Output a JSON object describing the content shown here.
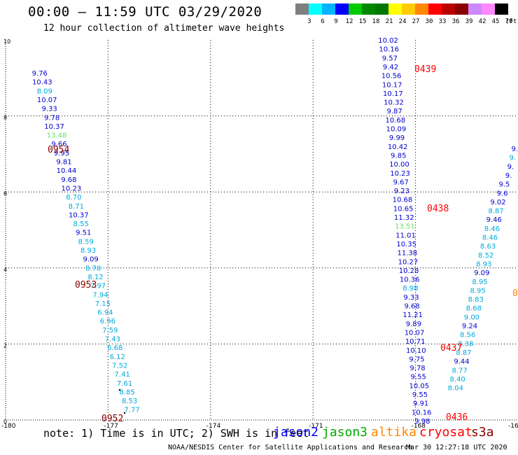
{
  "header": {
    "title": "00:00 — 11:59 UTC 03/29/2020",
    "subtitle": "12 hour collection of altimeter wave heights"
  },
  "legend": {
    "unit": "(ft)",
    "colors": [
      "#7f7f7f",
      "#00ffff",
      "#00b4ff",
      "#0000ff",
      "#00cc00",
      "#008800",
      "#007700",
      "#ffff00",
      "#ffcc00",
      "#ff8800",
      "#ff0000",
      "#bb0000",
      "#880000",
      "#cc88ff",
      "#ff88ff",
      "#000000"
    ],
    "labels": [
      "3",
      "6",
      "9",
      "12",
      "15",
      "18",
      "21",
      "24",
      "27",
      "30",
      "33",
      "36",
      "39",
      "42",
      "45",
      "70"
    ]
  },
  "footer": {
    "note": "note: 1) Time is in UTC; 2) SWH is in feet",
    "satellites": [
      {
        "name": "jason2",
        "color": "#0000ff"
      },
      {
        "name": "jason3",
        "color": "#00aa00"
      },
      {
        "name": "altika",
        "color": "#ff8800"
      },
      {
        "name": "cryosat",
        "color": "#ff0000"
      },
      {
        "name": "s3a",
        "color": "#880000"
      }
    ],
    "credit": "NOAA/NESDIS Center for Satellite Applications and Research",
    "timestamp": "Mar 30 12:27:18 UTC 2020"
  },
  "chart_data": {
    "type": "scatter",
    "title": "00:00 — 11:59 UTC 03/29/2020",
    "subtitle": "12 hour collection of altimeter wave heights",
    "xlim": [
      -180,
      -165
    ],
    "ylim": [
      0,
      10
    ],
    "xticks": [
      "-180",
      "-177",
      "-174",
      "-171",
      "-168",
      "-165"
    ],
    "yticks": [
      "0",
      "2",
      "4",
      "6",
      "8",
      "10"
    ],
    "grid": true,
    "tracks": [
      {
        "id": "track-left",
        "lon_start": -179.0,
        "lon_end": -176.3,
        "values": [
          {
            "v": "9.76",
            "c": "#0000cc"
          },
          {
            "v": "10.43",
            "c": "#0000cc"
          },
          {
            "v": "8.09",
            "c": "#00aadd"
          },
          {
            "v": "10.07",
            "c": "#0000cc"
          },
          {
            "v": "9.33",
            "c": "#0000cc"
          },
          {
            "v": "9.78",
            "c": "#0000cc"
          },
          {
            "v": "10.37",
            "c": "#0000cc"
          },
          {
            "v": "13.48",
            "c": "#66dd66"
          },
          {
            "v": "9.66",
            "c": "#0000cc"
          },
          {
            "v": "9.95",
            "c": "#0000cc"
          },
          {
            "v": "9.81",
            "c": "#0000cc"
          },
          {
            "v": "10.44",
            "c": "#0000cc"
          },
          {
            "v": "9.68",
            "c": "#0000cc"
          },
          {
            "v": "10.23",
            "c": "#0000cc"
          },
          {
            "v": "8.70",
            "c": "#00aadd"
          },
          {
            "v": "8.71",
            "c": "#00aadd"
          },
          {
            "v": "10.37",
            "c": "#0000cc"
          },
          {
            "v": "8.55",
            "c": "#00aadd"
          },
          {
            "v": "9.51",
            "c": "#0000cc"
          },
          {
            "v": "8.59",
            "c": "#00aadd"
          },
          {
            "v": "8.93",
            "c": "#00aadd"
          },
          {
            "v": "9.09",
            "c": "#0000cc"
          },
          {
            "v": "8.78",
            "c": "#00aadd"
          },
          {
            "v": "8.12",
            "c": "#00aadd"
          },
          {
            "v": "7.97",
            "c": "#00aadd"
          },
          {
            "v": "7.94",
            "c": "#00aadd"
          },
          {
            "v": "7.15",
            "c": "#00aadd"
          },
          {
            "v": "6.94",
            "c": "#00aadd"
          },
          {
            "v": "6.96",
            "c": "#00aadd"
          },
          {
            "v": "7.59",
            "c": "#00aadd"
          },
          {
            "v": "7.43",
            "c": "#00aadd"
          },
          {
            "v": "6.68",
            "c": "#00aadd"
          },
          {
            "v": "6.12",
            "c": "#00aadd"
          },
          {
            "v": "7.52",
            "c": "#00aadd"
          },
          {
            "v": "7.41",
            "c": "#00aadd"
          },
          {
            "v": "7.61",
            "c": "#00aadd"
          },
          {
            "v": "8.85",
            "c": "#00aadd"
          },
          {
            "v": "8.53",
            "c": "#00aadd"
          },
          {
            "v": "7.77",
            "c": "#00aadd"
          }
        ]
      },
      {
        "id": "track-middle",
        "lon_start": -168.8,
        "lon_end": -167.8,
        "values": [
          {
            "v": "10.02",
            "c": "#0000cc"
          },
          {
            "v": "10.16",
            "c": "#0000cc"
          },
          {
            "v": "9.57",
            "c": "#0000cc"
          },
          {
            "v": "9.42",
            "c": "#0000cc"
          },
          {
            "v": "10.56",
            "c": "#0000cc"
          },
          {
            "v": "10.17",
            "c": "#0000cc"
          },
          {
            "v": "10.17",
            "c": "#0000cc"
          },
          {
            "v": "10.32",
            "c": "#0000cc"
          },
          {
            "v": "9.87",
            "c": "#0000cc"
          },
          {
            "v": "10.68",
            "c": "#0000cc"
          },
          {
            "v": "10.09",
            "c": "#0000cc"
          },
          {
            "v": "9.99",
            "c": "#0000cc"
          },
          {
            "v": "10.42",
            "c": "#0000cc"
          },
          {
            "v": "9.85",
            "c": "#0000cc"
          },
          {
            "v": "10.00",
            "c": "#0000cc"
          },
          {
            "v": "10.23",
            "c": "#0000cc"
          },
          {
            "v": "9.67",
            "c": "#0000cc"
          },
          {
            "v": "9.23",
            "c": "#0000cc"
          },
          {
            "v": "10.68",
            "c": "#0000cc"
          },
          {
            "v": "10.65",
            "c": "#0000cc"
          },
          {
            "v": "11.32",
            "c": "#0000cc"
          },
          {
            "v": "13.51",
            "c": "#66dd66"
          },
          {
            "v": "11.01",
            "c": "#0000cc"
          },
          {
            "v": "10.35",
            "c": "#0000cc"
          },
          {
            "v": "11.38",
            "c": "#0000cc"
          },
          {
            "v": "10.27",
            "c": "#0000cc"
          },
          {
            "v": "10.28",
            "c": "#0000cc"
          },
          {
            "v": "10.36",
            "c": "#0000cc"
          },
          {
            "v": "8.98",
            "c": "#00aadd"
          },
          {
            "v": "9.33",
            "c": "#0000cc"
          },
          {
            "v": "9.68",
            "c": "#0000cc"
          },
          {
            "v": "11.21",
            "c": "#0000cc"
          },
          {
            "v": "9.89",
            "c": "#0000cc"
          },
          {
            "v": "10.07",
            "c": "#0000cc"
          },
          {
            "v": "10.71",
            "c": "#0000cc"
          },
          {
            "v": "10.10",
            "c": "#0000cc"
          },
          {
            "v": "9.75",
            "c": "#0000cc"
          },
          {
            "v": "9.78",
            "c": "#0000cc"
          },
          {
            "v": "9.55",
            "c": "#0000cc"
          },
          {
            "v": "10.05",
            "c": "#0000cc"
          },
          {
            "v": "9.55",
            "c": "#0000cc"
          },
          {
            "v": "9.91",
            "c": "#0000cc"
          },
          {
            "v": "10.16",
            "c": "#0000cc"
          },
          {
            "v": "9.98",
            "c": "#0000cc"
          }
        ]
      },
      {
        "id": "track-right",
        "lon_start": -165.0,
        "lon_end": -166.6,
        "values": [
          {
            "v": "9.",
            "c": "#0000cc"
          },
          {
            "v": "9.",
            "c": "#00aadd"
          },
          {
            "v": "9.",
            "c": "#0000cc"
          },
          {
            "v": "9.",
            "c": "#0000cc"
          },
          {
            "v": "9.5",
            "c": "#0000cc"
          },
          {
            "v": "9.6",
            "c": "#0000cc"
          },
          {
            "v": "9.02",
            "c": "#0000cc"
          },
          {
            "v": "8.87",
            "c": "#00aadd"
          },
          {
            "v": "9.46",
            "c": "#0000cc"
          },
          {
            "v": "8.46",
            "c": "#00aadd"
          },
          {
            "v": "8.46",
            "c": "#00aadd"
          },
          {
            "v": "8.63",
            "c": "#00aadd"
          },
          {
            "v": "8.52",
            "c": "#00aadd"
          },
          {
            "v": "8.93",
            "c": "#00aadd"
          },
          {
            "v": "9.09",
            "c": "#0000cc"
          },
          {
            "v": "8.95",
            "c": "#00aadd"
          },
          {
            "v": "8.95",
            "c": "#00aadd"
          },
          {
            "v": "8.83",
            "c": "#00aadd"
          },
          {
            "v": "8.68",
            "c": "#00aadd"
          },
          {
            "v": "9.00",
            "c": "#00aadd"
          },
          {
            "v": "9.24",
            "c": "#0000cc"
          },
          {
            "v": "8.56",
            "c": "#00aadd"
          },
          {
            "v": "8.38",
            "c": "#00aadd"
          },
          {
            "v": "8.87",
            "c": "#00aadd"
          },
          {
            "v": "9.44",
            "c": "#0000cc"
          },
          {
            "v": "8.77",
            "c": "#00aadd"
          },
          {
            "v": "8.40",
            "c": "#00aadd"
          },
          {
            "v": "8.04",
            "c": "#00aadd"
          }
        ]
      }
    ],
    "time_labels": [
      {
        "text": "0954",
        "color": "#880000"
      },
      {
        "text": "0953",
        "color": "#880000"
      },
      {
        "text": "0952",
        "color": "#880000"
      },
      {
        "text": "0439",
        "color": "#ff0000"
      },
      {
        "text": "0438",
        "color": "#ff0000"
      },
      {
        "text": "0437",
        "color": "#ff0000"
      },
      {
        "text": "0436",
        "color": "#ff0000"
      },
      {
        "text": "0",
        "color": "#ff8800"
      }
    ]
  }
}
